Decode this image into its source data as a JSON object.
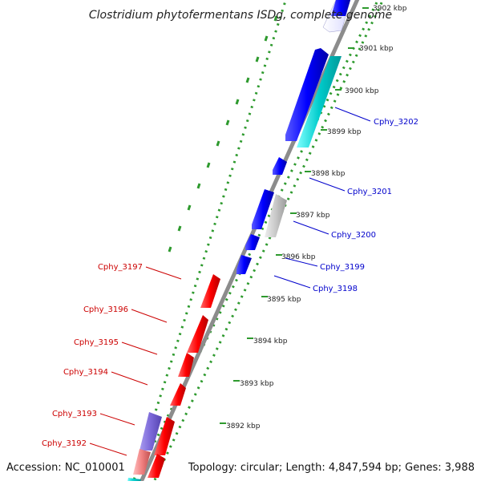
{
  "title": "Clostridium phytofermentans ISDg, complete genome",
  "accession": "Accession: NC_010001",
  "topology": "Topology: circular; Length: 4,847,594 bp; Genes: 3,988",
  "colors": {
    "backbone": "#8c8c8c",
    "dots": "#2e9a2e",
    "ticks": "#2e9a2e",
    "forward_gene": "#ff0000",
    "reverse_gene": "#0000ff",
    "cds_cyan": "#00cccc",
    "pseudo_gray": "#bfbfbf",
    "purple": "#7b68d8",
    "pink": "#f08080",
    "label_forward": "#cc0000",
    "label_reverse": "#0000cc"
  },
  "ticks": [
    {
      "label": "3902 kbp"
    },
    {
      "label": "3901 kbp"
    },
    {
      "label": "3900 kbp"
    },
    {
      "label": "3899 kbp"
    },
    {
      "label": "3898 kbp"
    },
    {
      "label": "3897 kbp"
    },
    {
      "label": "3896 kbp"
    },
    {
      "label": "3895 kbp"
    },
    {
      "label": "3894 kbp"
    },
    {
      "label": "3893 kbp"
    },
    {
      "label": "3892 kbp"
    }
  ],
  "reverse_labels": [
    {
      "name": "Cphy_3202"
    },
    {
      "name": "Cphy_3201"
    },
    {
      "name": "Cphy_3200"
    },
    {
      "name": "Cphy_3199"
    },
    {
      "name": "Cphy_3198"
    }
  ],
  "forward_labels": [
    {
      "name": "Cphy_3197"
    },
    {
      "name": "Cphy_3196"
    },
    {
      "name": "Cphy_3195"
    },
    {
      "name": "Cphy_3194"
    },
    {
      "name": "Cphy_3193"
    },
    {
      "name": "Cphy_3192"
    }
  ]
}
